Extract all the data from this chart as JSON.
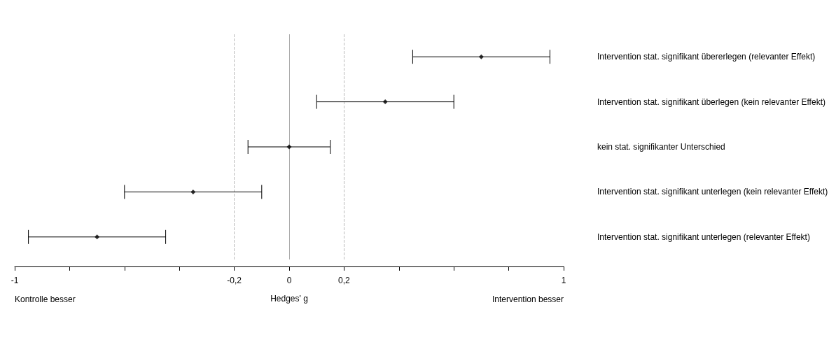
{
  "chart_data": {
    "type": "scatter",
    "orientation": "horizontal",
    "xlabel": "Hedges' g",
    "categories": [
      "Intervention stat. signifikant übererlegen (relevanter Effekt)",
      "Intervention stat. signifikant überlegen (kein relevanter Effekt)",
      "kein stat. signifikanter Unterschied",
      "Intervention stat. signifikant unterlegen (kein relevanter Effekt)",
      "Intervention stat. signifikant unterlegen (relevanter Effekt)"
    ],
    "values": [
      0.7,
      0.35,
      0,
      -0.35,
      -0.7
    ],
    "errors": [
      [
        0.45,
        0.95
      ],
      [
        0.1,
        0.6
      ],
      [
        -0.15,
        0.15
      ],
      [
        -0.6,
        -0.1
      ],
      [
        -0.95,
        -0.45
      ]
    ],
    "color": "#000000",
    "marker": "diamond",
    "xlim": [
      -1,
      1
    ],
    "xticks": [
      {
        "value": -1,
        "label": "-1"
      },
      {
        "value": -0.8,
        "label": null
      },
      {
        "value": -0.6,
        "label": null
      },
      {
        "value": -0.4,
        "label": null
      },
      {
        "value": -0.2,
        "label": "-0,2"
      },
      0,
      {
        "value": 0.2,
        "label": "0,2"
      },
      {
        "value": 0.4,
        "label": null
      },
      {
        "value": 0.6,
        "label": null
      },
      {
        "value": 0.8,
        "label": null
      },
      {
        "value": 1,
        "label": "1"
      }
    ],
    "ref_lines": [
      {
        "axis": "x",
        "value": -0.2,
        "color": "#bbbbbb",
        "line_style": "dashed"
      },
      {
        "axis": "x",
        "value": 0,
        "color": "#aaaaaa",
        "line_style": "solid"
      },
      {
        "axis": "x",
        "value": 0.2,
        "color": "#bbbbbb",
        "line_style": "dashed"
      }
    ],
    "annotations": [
      "Kontrolle besser",
      "Intervention besser"
    ],
    "grid": false
  }
}
